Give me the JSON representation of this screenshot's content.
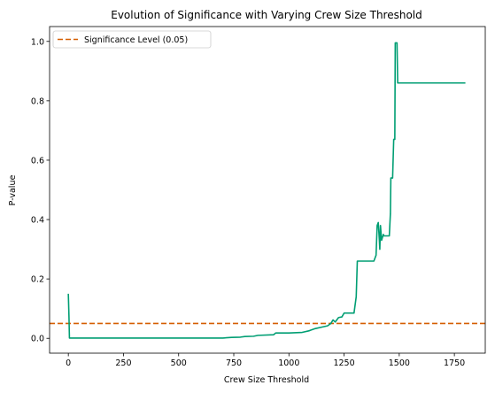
{
  "chart_data": {
    "type": "line",
    "title": "Evolution of Significance with Varying Crew Size Threshold",
    "xlabel": "Crew Size Threshold",
    "ylabel": "P-value",
    "xlim": [
      -85,
      1890
    ],
    "ylim": [
      -0.05,
      1.05
    ],
    "xticks": [
      0,
      250,
      500,
      750,
      1000,
      1250,
      1500,
      1750
    ],
    "yticks": [
      0.0,
      0.2,
      0.4,
      0.6,
      0.8,
      1.0
    ],
    "xtick_labels": [
      "0",
      "250",
      "500",
      "750",
      "1000",
      "1250",
      "1500",
      "1750"
    ],
    "ytick_labels": [
      "0.0",
      "0.2",
      "0.4",
      "0.6",
      "0.8",
      "1.0"
    ],
    "grid": false,
    "legend_position": "upper left",
    "colors": {
      "series": "#009E73",
      "threshold": "#D55E00"
    },
    "series": [
      {
        "name": "p-value",
        "x": [
          0,
          3,
          5,
          700,
          740,
          780,
          800,
          840,
          860,
          930,
          940,
          1000,
          1060,
          1090,
          1100,
          1120,
          1150,
          1175,
          1190,
          1200,
          1210,
          1225,
          1240,
          1250,
          1265,
          1295,
          1305,
          1310,
          1325,
          1350,
          1385,
          1395,
          1400,
          1405,
          1410,
          1412,
          1415,
          1420,
          1428,
          1430,
          1440,
          1455,
          1460,
          1462,
          1470,
          1475,
          1480,
          1482,
          1490,
          1493,
          1495,
          1500,
          1800
        ],
        "y": [
          0.15,
          0.07,
          0.001,
          0.001,
          0.003,
          0.004,
          0.006,
          0.007,
          0.01,
          0.012,
          0.018,
          0.018,
          0.02,
          0.025,
          0.028,
          0.033,
          0.038,
          0.042,
          0.05,
          0.062,
          0.055,
          0.07,
          0.072,
          0.085,
          0.085,
          0.085,
          0.14,
          0.26,
          0.26,
          0.26,
          0.26,
          0.28,
          0.38,
          0.39,
          0.33,
          0.3,
          0.38,
          0.33,
          0.35,
          0.345,
          0.345,
          0.345,
          0.42,
          0.54,
          0.54,
          0.67,
          0.67,
          0.995,
          0.995,
          0.86,
          0.86,
          0.86,
          0.86
        ]
      }
    ],
    "reference_lines": [
      {
        "name": "Significance Level (0.05)",
        "y": 0.05,
        "style": "dashed"
      }
    ]
  }
}
